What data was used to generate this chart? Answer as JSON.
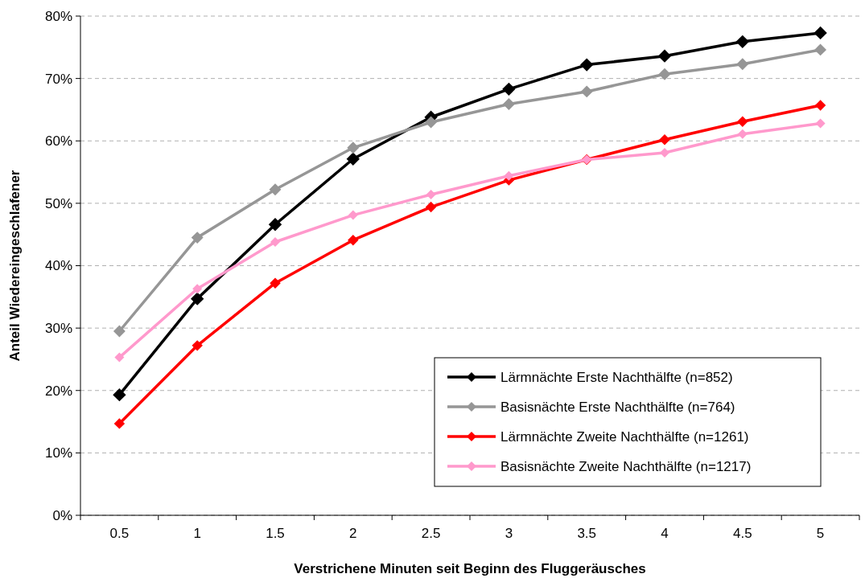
{
  "chart_data": {
    "type": "line",
    "xlabel": "Verstrichene Minuten seit Beginn des Fluggeräusches",
    "ylabel": "Anteil Wiedereingeschlafener",
    "categories": [
      "0.5",
      "1",
      "1.5",
      "2",
      "2.5",
      "3",
      "3.5",
      "4",
      "4.5",
      "5"
    ],
    "series": [
      {
        "name": "Lärmnächte Erste Nachthälfte (n=852)",
        "color": "#000000",
        "values": [
          19.3,
          34.7,
          46.6,
          57.1,
          63.8,
          68.3,
          72.2,
          73.6,
          75.9,
          77.3
        ]
      },
      {
        "name": "Basisnächte Erste Nachthälfte (n=764)",
        "color": "#969696",
        "values": [
          29.5,
          44.5,
          52.2,
          58.9,
          63.0,
          65.9,
          67.9,
          70.7,
          72.3,
          74.6
        ]
      },
      {
        "name": "Lärmnächte Zweite Nachthälfte (n=1261)",
        "color": "#ff0000",
        "values": [
          14.7,
          27.2,
          37.2,
          44.1,
          49.4,
          53.7,
          57.0,
          60.2,
          63.1,
          65.7
        ]
      },
      {
        "name": "Basisnächte Zweite Nachthälfte (n=1217)",
        "color": "#ff99cc",
        "values": [
          25.3,
          36.3,
          43.8,
          48.1,
          51.4,
          54.4,
          57.0,
          58.1,
          61.1,
          62.8
        ]
      }
    ],
    "ylim": [
      0,
      80
    ],
    "yticks": [
      {
        "value": 0,
        "label": "0%"
      },
      {
        "value": 10,
        "label": "10%"
      },
      {
        "value": 20,
        "label": "20%"
      },
      {
        "value": 30,
        "label": "30%"
      },
      {
        "value": 40,
        "label": "40%"
      },
      {
        "value": 50,
        "label": "50%"
      },
      {
        "value": 60,
        "label": "60%"
      },
      {
        "value": 70,
        "label": "70%"
      },
      {
        "value": 80,
        "label": "80%"
      }
    ],
    "grid": "y",
    "legend": "bottom right",
    "marker": "diamond",
    "line_style": "solid"
  }
}
